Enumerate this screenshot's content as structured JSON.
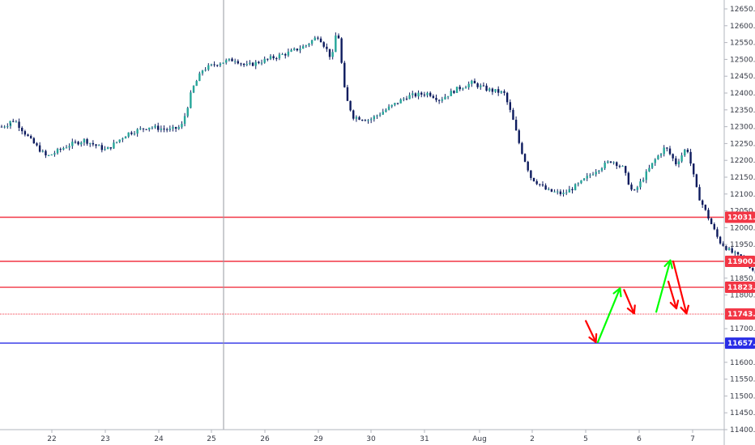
{
  "chart_data": {
    "type": "candlestick",
    "title": "",
    "ylim": [
      11400,
      12675
    ],
    "y_ticks": [
      {
        "value": 12650,
        "label": "12650.0"
      },
      {
        "value": 12600,
        "label": "12600.0"
      },
      {
        "value": 12550,
        "label": "12550.0"
      },
      {
        "value": 12500,
        "label": "12500.0"
      },
      {
        "value": 12450,
        "label": "12450.0"
      },
      {
        "value": 12400,
        "label": "12400.0"
      },
      {
        "value": 12350,
        "label": "12350.0"
      },
      {
        "value": 12300,
        "label": "12300.0"
      },
      {
        "value": 12250,
        "label": "12250.0"
      },
      {
        "value": 12200,
        "label": "12200.0"
      },
      {
        "value": 12150,
        "label": "12150.0"
      },
      {
        "value": 12100,
        "label": "12100.0"
      },
      {
        "value": 12050,
        "label": "12050.0"
      },
      {
        "value": 12000,
        "label": "12000.0"
      },
      {
        "value": 11950,
        "label": "11950.0"
      },
      {
        "value": 11850,
        "label": "11850.0"
      },
      {
        "value": 11800,
        "label": "11800.0"
      },
      {
        "value": 11700,
        "label": "11700.0"
      },
      {
        "value": 11650,
        "label": "11650.0"
      },
      {
        "value": 11600,
        "label": "11600.0"
      },
      {
        "value": 11550,
        "label": "11550.0"
      },
      {
        "value": 11500,
        "label": "11500.0"
      },
      {
        "value": 11450,
        "label": "11450.0"
      },
      {
        "value": 11400,
        "label": "11400.0"
      }
    ],
    "x_ticks": [
      "22",
      "23",
      "24",
      "25",
      "26",
      "29",
      "30",
      "31",
      "Aug",
      "2",
      "5",
      "6",
      "7"
    ],
    "levels": [
      {
        "value": 12031.0,
        "label": "12031.0",
        "color": "#f23645",
        "style": "solid"
      },
      {
        "value": 11900.0,
        "label": "11900.0",
        "color": "#f23645",
        "style": "solid"
      },
      {
        "value": 11823.0,
        "label": "11823.0",
        "color": "#f23645",
        "style": "solid"
      },
      {
        "value": 11743.5,
        "label": "11743.5",
        "color": "#f23645",
        "style": "dotted"
      },
      {
        "value": 11657.0,
        "label": "11657.0",
        "color": "#2a2ee6",
        "style": "solid"
      }
    ],
    "price_path": [
      [
        0,
        12300
      ],
      [
        0.3,
        12320
      ],
      [
        0.6,
        12260
      ],
      [
        0.9,
        12210
      ],
      [
        1.3,
        12245
      ],
      [
        1.6,
        12260
      ],
      [
        2.0,
        12230
      ],
      [
        2.4,
        12280
      ],
      [
        2.8,
        12300
      ],
      [
        3.2,
        12290
      ],
      [
        3.4,
        12300
      ],
      [
        3.5,
        12350
      ],
      [
        3.6,
        12410
      ],
      [
        3.8,
        12470
      ],
      [
        4.1,
        12490
      ],
      [
        4.4,
        12500
      ],
      [
        4.6,
        12480
      ],
      [
        5.0,
        12500
      ],
      [
        5.4,
        12520
      ],
      [
        5.7,
        12540
      ],
      [
        5.95,
        12570
      ],
      [
        6.1,
        12530
      ],
      [
        6.2,
        12500
      ],
      [
        6.3,
        12600
      ],
      [
        6.45,
        12390
      ],
      [
        6.6,
        12330
      ],
      [
        6.9,
        12320
      ],
      [
        7.2,
        12350
      ],
      [
        7.6,
        12390
      ],
      [
        8.0,
        12400
      ],
      [
        8.2,
        12380
      ],
      [
        8.5,
        12410
      ],
      [
        8.8,
        12430
      ],
      [
        9.1,
        12410
      ],
      [
        9.4,
        12400
      ],
      [
        9.55,
        12330
      ],
      [
        9.7,
        12240
      ],
      [
        9.9,
        12150
      ],
      [
        10.2,
        12110
      ],
      [
        10.5,
        12100
      ],
      [
        10.8,
        12130
      ],
      [
        11.1,
        12170
      ],
      [
        11.4,
        12200
      ],
      [
        11.6,
        12180
      ],
      [
        11.8,
        12100
      ],
      [
        12.0,
        12150
      ],
      [
        12.2,
        12200
      ],
      [
        12.4,
        12240
      ],
      [
        12.6,
        12190
      ],
      [
        12.8,
        12240
      ],
      [
        13.0,
        12100
      ],
      [
        13.2,
        12030
      ],
      [
        13.4,
        11960
      ],
      [
        13.6,
        11930
      ],
      [
        13.9,
        11900
      ],
      [
        14.1,
        11860
      ],
      [
        14.3,
        11880
      ],
      [
        14.45,
        11895
      ]
    ],
    "after_gap_path": [
      [
        14.5,
        11745
      ],
      [
        14.6,
        11730
      ]
    ],
    "arrows": [
      {
        "points": [
          [
            14.55,
            11723
          ],
          [
            14.8,
            11660
          ]
        ],
        "color": "#ff0000"
      },
      {
        "points": [
          [
            14.85,
            11660
          ],
          [
            15.4,
            11820
          ]
        ],
        "color": "#00ff00"
      },
      {
        "points": [
          [
            15.5,
            11815
          ],
          [
            15.75,
            11745
          ]
        ],
        "color": "#ff0000"
      },
      {
        "points": [
          [
            16.3,
            11750
          ],
          [
            16.65,
            11903
          ]
        ],
        "color": "#00ff00"
      },
      {
        "points": [
          [
            16.72,
            11900
          ],
          [
            17.05,
            11745
          ]
        ],
        "color": "#ff0000"
      },
      {
        "points": [
          [
            16.6,
            11840
          ],
          [
            16.8,
            11760
          ]
        ],
        "color": "#ff0000"
      }
    ],
    "vertical_marker_x": 6.2
  }
}
